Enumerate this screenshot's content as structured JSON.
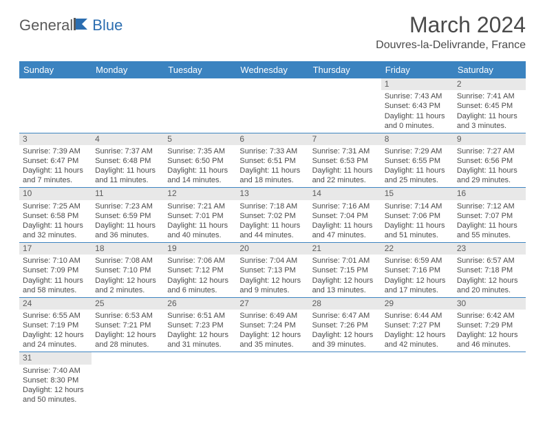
{
  "logo": {
    "part1": "General",
    "part2": "Blue"
  },
  "header": {
    "title": "March 2024",
    "location": "Douvres-la-Delivrande, France"
  },
  "colors": {
    "header_bg": "#3b83c0",
    "header_text": "#ffffff",
    "daynum_bg": "#e8e8e8",
    "text": "#4a4a4a",
    "rule": "#3b83c0"
  },
  "dayNames": [
    "Sunday",
    "Monday",
    "Tuesday",
    "Wednesday",
    "Thursday",
    "Friday",
    "Saturday"
  ],
  "weeks": [
    [
      null,
      null,
      null,
      null,
      null,
      {
        "num": "1",
        "sunrise": "Sunrise: 7:43 AM",
        "sunset": "Sunset: 6:43 PM",
        "daylight": "Daylight: 11 hours and 0 minutes."
      },
      {
        "num": "2",
        "sunrise": "Sunrise: 7:41 AM",
        "sunset": "Sunset: 6:45 PM",
        "daylight": "Daylight: 11 hours and 3 minutes."
      }
    ],
    [
      {
        "num": "3",
        "sunrise": "Sunrise: 7:39 AM",
        "sunset": "Sunset: 6:47 PM",
        "daylight": "Daylight: 11 hours and 7 minutes."
      },
      {
        "num": "4",
        "sunrise": "Sunrise: 7:37 AM",
        "sunset": "Sunset: 6:48 PM",
        "daylight": "Daylight: 11 hours and 11 minutes."
      },
      {
        "num": "5",
        "sunrise": "Sunrise: 7:35 AM",
        "sunset": "Sunset: 6:50 PM",
        "daylight": "Daylight: 11 hours and 14 minutes."
      },
      {
        "num": "6",
        "sunrise": "Sunrise: 7:33 AM",
        "sunset": "Sunset: 6:51 PM",
        "daylight": "Daylight: 11 hours and 18 minutes."
      },
      {
        "num": "7",
        "sunrise": "Sunrise: 7:31 AM",
        "sunset": "Sunset: 6:53 PM",
        "daylight": "Daylight: 11 hours and 22 minutes."
      },
      {
        "num": "8",
        "sunrise": "Sunrise: 7:29 AM",
        "sunset": "Sunset: 6:55 PM",
        "daylight": "Daylight: 11 hours and 25 minutes."
      },
      {
        "num": "9",
        "sunrise": "Sunrise: 7:27 AM",
        "sunset": "Sunset: 6:56 PM",
        "daylight": "Daylight: 11 hours and 29 minutes."
      }
    ],
    [
      {
        "num": "10",
        "sunrise": "Sunrise: 7:25 AM",
        "sunset": "Sunset: 6:58 PM",
        "daylight": "Daylight: 11 hours and 32 minutes."
      },
      {
        "num": "11",
        "sunrise": "Sunrise: 7:23 AM",
        "sunset": "Sunset: 6:59 PM",
        "daylight": "Daylight: 11 hours and 36 minutes."
      },
      {
        "num": "12",
        "sunrise": "Sunrise: 7:21 AM",
        "sunset": "Sunset: 7:01 PM",
        "daylight": "Daylight: 11 hours and 40 minutes."
      },
      {
        "num": "13",
        "sunrise": "Sunrise: 7:18 AM",
        "sunset": "Sunset: 7:02 PM",
        "daylight": "Daylight: 11 hours and 44 minutes."
      },
      {
        "num": "14",
        "sunrise": "Sunrise: 7:16 AM",
        "sunset": "Sunset: 7:04 PM",
        "daylight": "Daylight: 11 hours and 47 minutes."
      },
      {
        "num": "15",
        "sunrise": "Sunrise: 7:14 AM",
        "sunset": "Sunset: 7:06 PM",
        "daylight": "Daylight: 11 hours and 51 minutes."
      },
      {
        "num": "16",
        "sunrise": "Sunrise: 7:12 AM",
        "sunset": "Sunset: 7:07 PM",
        "daylight": "Daylight: 11 hours and 55 minutes."
      }
    ],
    [
      {
        "num": "17",
        "sunrise": "Sunrise: 7:10 AM",
        "sunset": "Sunset: 7:09 PM",
        "daylight": "Daylight: 11 hours and 58 minutes."
      },
      {
        "num": "18",
        "sunrise": "Sunrise: 7:08 AM",
        "sunset": "Sunset: 7:10 PM",
        "daylight": "Daylight: 12 hours and 2 minutes."
      },
      {
        "num": "19",
        "sunrise": "Sunrise: 7:06 AM",
        "sunset": "Sunset: 7:12 PM",
        "daylight": "Daylight: 12 hours and 6 minutes."
      },
      {
        "num": "20",
        "sunrise": "Sunrise: 7:04 AM",
        "sunset": "Sunset: 7:13 PM",
        "daylight": "Daylight: 12 hours and 9 minutes."
      },
      {
        "num": "21",
        "sunrise": "Sunrise: 7:01 AM",
        "sunset": "Sunset: 7:15 PM",
        "daylight": "Daylight: 12 hours and 13 minutes."
      },
      {
        "num": "22",
        "sunrise": "Sunrise: 6:59 AM",
        "sunset": "Sunset: 7:16 PM",
        "daylight": "Daylight: 12 hours and 17 minutes."
      },
      {
        "num": "23",
        "sunrise": "Sunrise: 6:57 AM",
        "sunset": "Sunset: 7:18 PM",
        "daylight": "Daylight: 12 hours and 20 minutes."
      }
    ],
    [
      {
        "num": "24",
        "sunrise": "Sunrise: 6:55 AM",
        "sunset": "Sunset: 7:19 PM",
        "daylight": "Daylight: 12 hours and 24 minutes."
      },
      {
        "num": "25",
        "sunrise": "Sunrise: 6:53 AM",
        "sunset": "Sunset: 7:21 PM",
        "daylight": "Daylight: 12 hours and 28 minutes."
      },
      {
        "num": "26",
        "sunrise": "Sunrise: 6:51 AM",
        "sunset": "Sunset: 7:23 PM",
        "daylight": "Daylight: 12 hours and 31 minutes."
      },
      {
        "num": "27",
        "sunrise": "Sunrise: 6:49 AM",
        "sunset": "Sunset: 7:24 PM",
        "daylight": "Daylight: 12 hours and 35 minutes."
      },
      {
        "num": "28",
        "sunrise": "Sunrise: 6:47 AM",
        "sunset": "Sunset: 7:26 PM",
        "daylight": "Daylight: 12 hours and 39 minutes."
      },
      {
        "num": "29",
        "sunrise": "Sunrise: 6:44 AM",
        "sunset": "Sunset: 7:27 PM",
        "daylight": "Daylight: 12 hours and 42 minutes."
      },
      {
        "num": "30",
        "sunrise": "Sunrise: 6:42 AM",
        "sunset": "Sunset: 7:29 PM",
        "daylight": "Daylight: 12 hours and 46 minutes."
      }
    ],
    [
      {
        "num": "31",
        "sunrise": "Sunrise: 7:40 AM",
        "sunset": "Sunset: 8:30 PM",
        "daylight": "Daylight: 12 hours and 50 minutes."
      },
      null,
      null,
      null,
      null,
      null,
      null
    ]
  ]
}
